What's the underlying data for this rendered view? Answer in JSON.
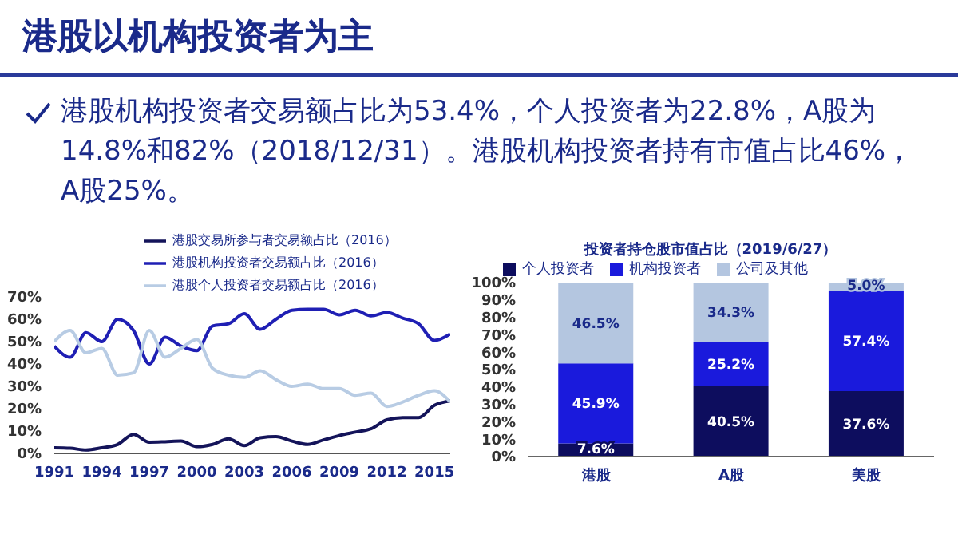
{
  "chart_data": [
    {
      "type": "other",
      "title": "港股以机构投资者为主",
      "annotations": [
        "港股机构投资者交易额占比为53.4%，个人投资者为22.8%，A股为14.8%和82%（2018/12/31）。港股机构投资者持有市值占比46%，A股25%。"
      ]
    },
    {
      "type": "line",
      "x": [
        1991,
        1992,
        1993,
        1994,
        1995,
        1996,
        1997,
        1998,
        1999,
        2000,
        2001,
        2002,
        2003,
        2004,
        2005,
        2006,
        2007,
        2008,
        2009,
        2010,
        2011,
        2012,
        2013,
        2014,
        2015,
        2016
      ],
      "series": [
        {
          "name": "港股交易所参与者交易额占比（2016）",
          "color": "#14145a",
          "values": [
            2.5,
            2.3,
            1.5,
            2.5,
            4,
            8.5,
            5,
            5.2,
            5.5,
            3,
            4,
            6.5,
            3.5,
            7,
            7.5,
            5.5,
            4,
            6,
            8,
            9.5,
            11,
            15,
            16,
            16,
            21.5,
            23.5
          ]
        },
        {
          "name": "港股机构投资者交易额占比（2016）",
          "color": "#1f1fb4",
          "values": [
            48,
            43,
            54,
            50,
            60,
            55,
            40,
            52,
            48,
            46,
            57,
            58,
            62.5,
            55.5,
            60,
            64,
            64.5,
            64.5,
            62,
            64,
            61.5,
            63,
            60.5,
            58,
            50.5,
            53.4
          ]
        },
        {
          "name": "港股个人投资者交易额占比（2016）",
          "color": "#b8cce4",
          "values": [
            50,
            55,
            45,
            47,
            35,
            36,
            55,
            43,
            47,
            51,
            38,
            35,
            34,
            37,
            33,
            30,
            31,
            29,
            29,
            26,
            27,
            21,
            23,
            26,
            28,
            23
          ]
        }
      ],
      "xlim": [
        1991,
        2016
      ],
      "xticks": [
        1991,
        1994,
        1997,
        2000,
        2003,
        2006,
        2009,
        2012,
        2015
      ],
      "ylim": [
        0,
        70
      ],
      "yticks": [
        {
          "value": 0,
          "label": "0%"
        },
        {
          "value": 10,
          "label": "10%"
        },
        {
          "value": 20,
          "label": "20%"
        },
        {
          "value": 30,
          "label": "30%"
        },
        {
          "value": 40,
          "label": "40%"
        },
        {
          "value": 50,
          "label": "50%"
        },
        {
          "value": 60,
          "label": "60%"
        },
        {
          "value": 70,
          "label": "70%"
        }
      ],
      "legend": "top right",
      "grid": false,
      "marker": "none",
      "line_style": "solid"
    },
    {
      "type": "bar",
      "title": "投资者持仓股市值占比（2019/6/27）",
      "categories": [
        "港股",
        "A股",
        "美股"
      ],
      "stacked": true,
      "series": [
        {
          "name": "个人投资者",
          "color": "#0d0d5e",
          "values": [
            7.6,
            40.5,
            37.6
          ],
          "value_labels": [
            "7.6%",
            "40.5%",
            "37.6%"
          ]
        },
        {
          "name": "机构投资者",
          "color": "#1a1adc",
          "values": [
            45.9,
            25.2,
            57.4
          ],
          "value_labels": [
            "45.9%",
            "25.2%",
            "57.4%"
          ]
        },
        {
          "name": "公司及其他",
          "color": "#b4c6e0",
          "values": [
            46.5,
            34.3,
            5.0
          ],
          "value_labels": [
            "46.5%",
            "34.3%",
            "5.0%"
          ]
        }
      ],
      "ylim": [
        0,
        100
      ],
      "yticks": [
        {
          "value": 0,
          "label": "0%"
        },
        {
          "value": 10,
          "label": "10%"
        },
        {
          "value": 20,
          "label": "20%"
        },
        {
          "value": 30,
          "label": "30%"
        },
        {
          "value": 40,
          "label": "40%"
        },
        {
          "value": 50,
          "label": "50%"
        },
        {
          "value": 60,
          "label": "60%"
        },
        {
          "value": 70,
          "label": "70%"
        },
        {
          "value": 80,
          "label": "80%"
        },
        {
          "value": 90,
          "label": "90%"
        },
        {
          "value": 100,
          "label": "100%"
        }
      ],
      "legend": "top left",
      "grid": false
    }
  ]
}
